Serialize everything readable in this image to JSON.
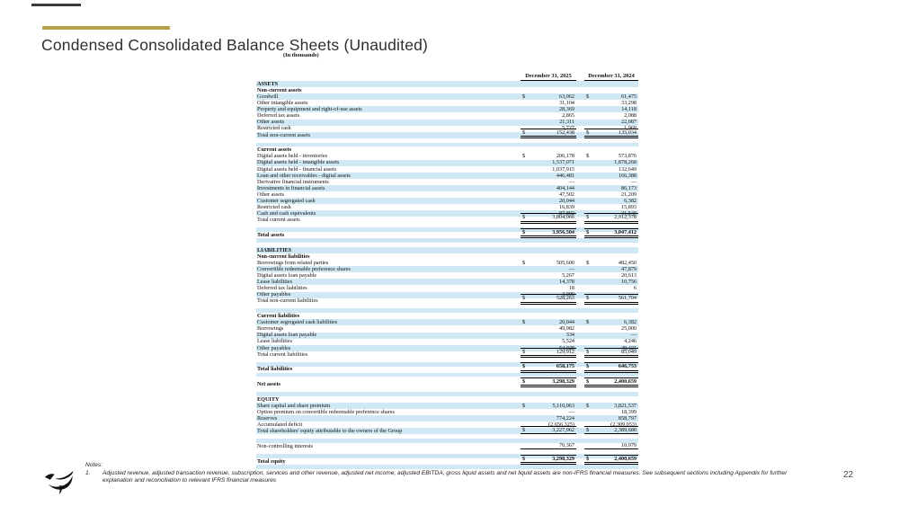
{
  "slide": {
    "title": "Condensed Consolidated Balance Sheets (Unaudited)",
    "units_label": "(In thousands)",
    "page_number": "22",
    "accent_color": "#b99f48",
    "stripe_color": "#d0e8f4"
  },
  "table": {
    "col_headers": [
      "December 31, 2025",
      "December 31, 2024"
    ],
    "rows": [
      {
        "type": "section",
        "label": "ASSETS",
        "shade": true
      },
      {
        "type": "section",
        "label": "Non-current assets",
        "shade": false
      },
      {
        "type": "item",
        "label": "Goodwill",
        "dollar": true,
        "v1": "63,062",
        "v2": "61,475",
        "shade": true
      },
      {
        "type": "item",
        "label": "Other intangible assets",
        "v1": "31,104",
        "v2": "33,298",
        "shade": false
      },
      {
        "type": "item",
        "label": "Property and equipment and right-of-use assets",
        "v1": "28,369",
        "v2": "14,118",
        "shade": true
      },
      {
        "type": "item",
        "label": "Deferred tax assets",
        "v1": "2,865",
        "v2": "2,088",
        "shade": false
      },
      {
        "type": "item",
        "label": "Other assets",
        "v1": "21,311",
        "v2": "22,087",
        "shade": true
      },
      {
        "type": "item",
        "label": "Restricted cash",
        "v1": "5,727",
        "v2": "1,968",
        "shade": false
      },
      {
        "type": "item",
        "label": "Total non-current assets",
        "dollar": true,
        "v1": "152,438",
        "v2": "135,034",
        "shade": true,
        "rule": "tdb"
      },
      {
        "type": "spacer",
        "shade": false
      },
      {
        "type": "spacer",
        "shade": true
      },
      {
        "type": "section",
        "label": "Current assets",
        "shade": false
      },
      {
        "type": "item",
        "label": "Digital assets held - inventories",
        "dollar": true,
        "v1": "206,178",
        "v2": "573,876",
        "shade": false
      },
      {
        "type": "item",
        "label": "Digital assets held - intangible assets",
        "v1": "1,537,071",
        "v2": "1,878,268",
        "shade": true
      },
      {
        "type": "item",
        "label": "Digital assets held - financial assets",
        "v1": "1,037,915",
        "v2": "132,649",
        "shade": false
      },
      {
        "type": "item",
        "label": "Loan and other receivables - digital assets",
        "v1": "446,481",
        "v2": "166,388",
        "shade": true
      },
      {
        "type": "item",
        "label": "Derivative financial instruments",
        "v1": "—",
        "v2": "—",
        "shade": false
      },
      {
        "type": "item",
        "label": "Investments in financial assets",
        "v1": "404,144",
        "v2": "86,173",
        "shade": true
      },
      {
        "type": "item",
        "label": "Other assets",
        "v1": "47,502",
        "v2": "21,209",
        "shade": false
      },
      {
        "type": "item",
        "label": "Customer segregated cash",
        "v1": "20,044",
        "v2": "6,382",
        "shade": true
      },
      {
        "type": "item",
        "label": "Restricted cash",
        "v1": "16,839",
        "v2": "15,893",
        "shade": false
      },
      {
        "type": "item",
        "label": "Cash and cash equivalents",
        "v1": "87,892",
        "v2": "31,540",
        "shade": true
      },
      {
        "type": "item",
        "label": "Total current assets",
        "dollar": true,
        "v1": "3,804,066",
        "v2": "2,912,378",
        "shade": false,
        "rule": "tdb"
      },
      {
        "type": "spacer",
        "shade": false
      },
      {
        "type": "spacer",
        "shade": true
      },
      {
        "type": "total",
        "label": "Total assets",
        "dollar": true,
        "v1": "3,956,504",
        "v2": "3,047,412",
        "shade": false,
        "bold": true,
        "rule": "tdb"
      },
      {
        "type": "spacer",
        "shade": true
      },
      {
        "type": "spacer",
        "shade": false
      },
      {
        "type": "section",
        "label": "LIABILITIES",
        "shade": true
      },
      {
        "type": "section",
        "label": "Non-current liabilities",
        "shade": false
      },
      {
        "type": "item",
        "label": "Borrowings from related parties",
        "dollar": true,
        "v1": "505,600",
        "v2": "482,450",
        "shade": false
      },
      {
        "type": "item",
        "label": "Convertible redeemable preference shares",
        "v1": "—",
        "v2": "47,879",
        "shade": true
      },
      {
        "type": "item",
        "label": "Digital assets loan payable",
        "v1": "5,267",
        "v2": "20,613",
        "shade": false
      },
      {
        "type": "item",
        "label": "Lease liabilities",
        "v1": "14,378",
        "v2": "10,756",
        "shade": true
      },
      {
        "type": "item",
        "label": "Deferred tax liabilities",
        "v1": "18",
        "v2": "6",
        "shade": false
      },
      {
        "type": "item",
        "label": "Other payables",
        "v1": "3,000",
        "v2": "—",
        "shade": true
      },
      {
        "type": "item",
        "label": "Total non-current liabilities",
        "dollar": true,
        "v1": "528,263",
        "v2": "561,704",
        "shade": false,
        "rule": "tdb"
      },
      {
        "type": "spacer",
        "shade": false
      },
      {
        "type": "spacer",
        "shade": true
      },
      {
        "type": "section",
        "label": "Current liabilities",
        "shade": false
      },
      {
        "type": "item",
        "label": "Customer segregated cash liabilities",
        "dollar": true,
        "v1": "20,044",
        "v2": "6,382",
        "shade": true
      },
      {
        "type": "item",
        "label": "Borrowings",
        "v1": "49,982",
        "v2": "25,000",
        "shade": false
      },
      {
        "type": "item",
        "label": "Digital assets loan payable",
        "v1": "334",
        "v2": "—",
        "shade": true
      },
      {
        "type": "item",
        "label": "Lease liabilities",
        "v1": "5,524",
        "v2": "4,246",
        "shade": false
      },
      {
        "type": "item",
        "label": "Other payables",
        "v1": "54,028",
        "v2": "49,421",
        "shade": true
      },
      {
        "type": "item",
        "label": "Total current liabilities",
        "dollar": true,
        "v1": "129,912",
        "v2": "85,049",
        "shade": false,
        "rule": "tdb"
      },
      {
        "type": "spacer",
        "shade": false
      },
      {
        "type": "spacer",
        "shade": true
      },
      {
        "type": "total",
        "label": "Total liabilities",
        "dollar": true,
        "v1": "658,175",
        "v2": "646,753",
        "shade": false,
        "bold": true,
        "rule": "tdb"
      },
      {
        "type": "spacer",
        "shade": true
      },
      {
        "type": "spacer",
        "shade": false
      },
      {
        "type": "total",
        "label": "Net assets",
        "dollar": true,
        "v1": "3,298,329",
        "v2": "2,400,659",
        "shade": false,
        "bold": true,
        "rule": "tdb"
      },
      {
        "type": "spacer",
        "shade": false
      },
      {
        "type": "spacer",
        "shade": true
      },
      {
        "type": "section",
        "label": "EQUITY",
        "shade": false
      },
      {
        "type": "item",
        "label": "Share capital and share premium",
        "dollar": true,
        "v1": "5,110,063",
        "v2": "3,821,537",
        "shade": true
      },
      {
        "type": "item",
        "label": "Option premium on convertible redeemable preference shares",
        "v1": "—",
        "v2": "18,399",
        "shade": false
      },
      {
        "type": "item",
        "label": "Reserves",
        "v1": "774,224",
        "v2": "858,797",
        "shade": true
      },
      {
        "type": "item",
        "label": "Accumulated deficit",
        "v1": "(2,656,325)",
        "v2": "(2,309,053)",
        "shade": false
      },
      {
        "type": "item",
        "label": "Total shareholders' equity attributable to the owners of the Group",
        "dollar": true,
        "v1": "3,227,962",
        "v2": "2,389,680",
        "shade": true,
        "rule": "tsb"
      },
      {
        "type": "spacer",
        "shade": false
      },
      {
        "type": "spacer",
        "shade": true
      },
      {
        "type": "item",
        "label": "Non-controlling interests",
        "v1": "70,367",
        "v2": "10,979",
        "shade": false,
        "rule": "sb"
      },
      {
        "type": "spacer",
        "shade": false
      },
      {
        "type": "spacer",
        "shade": true
      },
      {
        "type": "total",
        "label": "Total equity",
        "dollar": true,
        "v1": "3,298,329",
        "v2": "2,400,659",
        "shade": false,
        "bold": true,
        "rule": "tdb"
      },
      {
        "type": "spacer",
        "shade": true
      }
    ]
  },
  "footer": {
    "notes_label": "Notes:",
    "notes": [
      {
        "num": "1.",
        "text": "Adjusted revenue, adjusted transaction revenue, subscription, services and other revenue,  adjusted net income, adjusted EBITDA, gross liquid assets and net liquid assets are non-IFRS financial measures. See subsequent sections including Appendix for further explanation and reconciliation to relevant IFRS financial measures"
      }
    ]
  }
}
